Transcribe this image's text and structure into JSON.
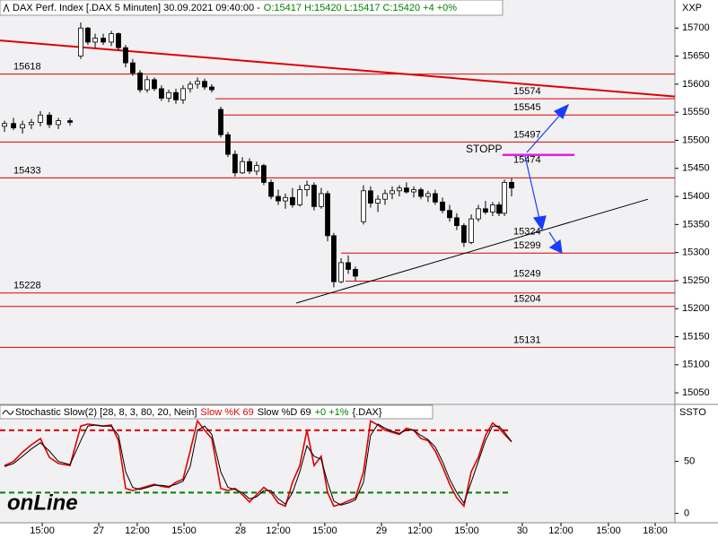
{
  "chart_data": [
    {
      "type": "candlestick",
      "title": "DAX Perf. Index [.DAX  5 Minuten] 30.09.2021 09:40:00 -",
      "quote": "O:15417 H:15420 L:15417 C:15420 +4 +0%",
      "axis_code": "XXP",
      "up_color": "#ffffff",
      "down_color": "#000000",
      "xlim": [
        0,
        43.47
      ],
      "ylim": [
        15031,
        15750
      ],
      "yticks": [
        15050,
        15100,
        15150,
        15200,
        15250,
        15300,
        15350,
        15400,
        15450,
        15500,
        15550,
        15600,
        15650,
        15700
      ],
      "x": [
        0.29,
        0.87,
        1.45,
        2.02,
        2.6,
        3.18,
        3.76,
        4.51,
        5.2,
        5.66,
        6.13,
        6.65,
        7.17,
        7.63,
        8.09,
        8.55,
        9.02,
        9.48,
        9.94,
        10.4,
        10.87,
        11.33,
        11.79,
        12.25,
        12.72,
        13.18,
        13.64,
        14.22,
        14.68,
        15.14,
        15.61,
        16.07,
        16.53,
        16.99,
        17.46,
        17.92,
        18.38,
        18.84,
        19.31,
        19.77,
        20.23,
        20.69,
        21.1,
        21.5,
        21.97,
        22.43,
        22.89,
        23.41,
        23.87,
        24.34,
        24.8,
        25.26,
        25.72,
        26.18,
        26.65,
        27.11,
        27.57,
        28.03,
        28.5,
        28.96,
        29.42,
        29.88,
        30.35,
        30.81,
        31.27,
        31.73,
        32.14,
        32.49,
        32.95
      ],
      "open": [
        15525,
        15530,
        15522,
        15528,
        15532,
        15545,
        15528,
        15535,
        15650,
        15700,
        15675,
        15682,
        15675,
        15690,
        15665,
        15638,
        15620,
        15590,
        15608,
        15592,
        15575,
        15585,
        15572,
        15592,
        15600,
        15605,
        15595,
        15555,
        15510,
        15475,
        15442,
        15462,
        15445,
        15455,
        15425,
        15400,
        15392,
        15398,
        15385,
        15412,
        15420,
        15382,
        15405,
        15330,
        15248,
        15282,
        15270,
        15355,
        15410,
        15388,
        15395,
        15405,
        15410,
        15415,
        15408,
        15412,
        15400,
        15405,
        15390,
        15375,
        15362,
        15348,
        15318,
        15360,
        15378,
        15372,
        15385,
        15370,
        15425
      ],
      "high": [
        15535,
        15540,
        15535,
        15538,
        15552,
        15550,
        15540,
        15540,
        15710,
        15702,
        15690,
        15690,
        15695,
        15692,
        15670,
        15645,
        15625,
        15615,
        15612,
        15598,
        15590,
        15592,
        15598,
        15605,
        15612,
        15610,
        15600,
        15560,
        15515,
        15482,
        15470,
        15468,
        15462,
        15458,
        15430,
        15412,
        15405,
        15415,
        15420,
        15428,
        15425,
        15415,
        15410,
        15335,
        15290,
        15295,
        15275,
        15420,
        15418,
        15402,
        15412,
        15418,
        15420,
        15425,
        15418,
        15416,
        15410,
        15412,
        15398,
        15385,
        15370,
        15352,
        15368,
        15385,
        15392,
        15390,
        15390,
        15430,
        15432
      ],
      "low": [
        15515,
        15518,
        15512,
        15520,
        15525,
        15522,
        15520,
        15526,
        15645,
        15670,
        15665,
        15670,
        15668,
        15660,
        15630,
        15615,
        15585,
        15585,
        15588,
        15570,
        15568,
        15565,
        15565,
        15585,
        15592,
        15590,
        15585,
        15505,
        15470,
        15435,
        15440,
        15440,
        15438,
        15420,
        15395,
        15385,
        15378,
        15380,
        15382,
        15400,
        15375,
        15378,
        15320,
        15238,
        15245,
        15262,
        15250,
        15350,
        15380,
        15372,
        15385,
        15395,
        15400,
        15405,
        15398,
        15395,
        15390,
        15385,
        15370,
        15355,
        15340,
        15310,
        15315,
        15355,
        15368,
        15365,
        15365,
        15365,
        15400
      ],
      "close": [
        15530,
        15522,
        15528,
        15532,
        15545,
        15528,
        15535,
        15532,
        15700,
        15675,
        15682,
        15675,
        15690,
        15665,
        15638,
        15620,
        15590,
        15608,
        15592,
        15575,
        15585,
        15572,
        15592,
        15600,
        15605,
        15595,
        15590,
        15510,
        15475,
        15442,
        15462,
        15445,
        15455,
        15425,
        15400,
        15392,
        15398,
        15385,
        15412,
        15420,
        15382,
        15405,
        15330,
        15248,
        15282,
        15270,
        15258,
        15410,
        15388,
        15395,
        15405,
        15410,
        15415,
        15408,
        15412,
        15400,
        15405,
        15390,
        15375,
        15362,
        15348,
        15318,
        15360,
        15378,
        15372,
        15385,
        15370,
        15425,
        15415
      ],
      "levels": [
        {
          "value": 15618,
          "from": 0,
          "label_side": "left",
          "color": "#e00000"
        },
        {
          "value": 15574,
          "from": 13.87,
          "label_side": "right",
          "color": "#e00000"
        },
        {
          "value": 15545,
          "from": 14.16,
          "label_side": "right",
          "color": "#e00000"
        },
        {
          "value": 15497,
          "from": 0,
          "label_side": "right",
          "color": "#e00000"
        },
        {
          "value": 15474,
          "from": 32.37,
          "to": 37.0,
          "label_side": "right",
          "color": "#e020e0",
          "note": "STOPP"
        },
        {
          "value": 15433,
          "from": 0,
          "label_side": "left",
          "color": "#e00000"
        },
        {
          "value": 15324,
          "label_side": "right",
          "color": "#000000"
        },
        {
          "value": 15299,
          "from": 21.97,
          "label_side": "right",
          "color": "#e00000"
        },
        {
          "value": 15249,
          "from": 22.25,
          "label_side": "right",
          "color": "#e00000"
        },
        {
          "value": 15228,
          "from": 0,
          "label_side": "left",
          "color": "#e00000"
        },
        {
          "value": 15204,
          "from": 0,
          "label_side": "right",
          "color": "#e00000"
        },
        {
          "value": 15131,
          "from": 0,
          "label_side": "right",
          "color": "#e00000"
        }
      ],
      "trendlines": [
        {
          "x": [
            0,
            43.47
          ],
          "y": [
            15678,
            15578
          ],
          "color": "#e00000",
          "width": 2
        },
        {
          "x": [
            19.08,
            41.73
          ],
          "y": [
            15210,
            15395
          ],
          "color": "#000000",
          "width": 1
        }
      ]
    },
    {
      "type": "line",
      "title": "Stochastic Slow(2) [28, 8, 3, 80, 20, Nein]",
      "change": "+0 +1%",
      "symbol": "{.DAX}",
      "axis_code": "SSTO",
      "watermark": "onLine",
      "xlim": [
        0,
        43.47
      ],
      "ylim": [
        -9,
        104
      ],
      "yticks": [
        0,
        50
      ],
      "xticks": [
        {
          "value": 2.72,
          "label": "15:00"
        },
        {
          "value": 6.36,
          "label": "27"
        },
        {
          "value": 8.84,
          "label": "12:00"
        },
        {
          "value": 11.85,
          "label": "15:00"
        },
        {
          "value": 15.49,
          "label": "28"
        },
        {
          "value": 17.92,
          "label": "12:00"
        },
        {
          "value": 20.92,
          "label": "15:00"
        },
        {
          "value": 24.57,
          "label": "29"
        },
        {
          "value": 27.05,
          "label": "12:00"
        },
        {
          "value": 30.06,
          "label": "15:00"
        },
        {
          "value": 33.64,
          "label": "30"
        },
        {
          "value": 36.13,
          "label": "12:00"
        },
        {
          "value": 39.19,
          "label": "15:00"
        },
        {
          "value": 42.2,
          "label": "18:00"
        }
      ],
      "x": [
        0.29,
        0.87,
        1.45,
        2.02,
        2.6,
        3.18,
        3.76,
        4.51,
        5.2,
        5.66,
        6.13,
        6.65,
        7.17,
        7.63,
        8.09,
        8.55,
        9.02,
        9.48,
        9.94,
        10.4,
        10.87,
        11.33,
        11.79,
        12.25,
        12.72,
        13.18,
        13.64,
        14.22,
        14.68,
        15.14,
        15.61,
        16.07,
        16.53,
        16.99,
        17.46,
        17.92,
        18.38,
        18.84,
        19.31,
        19.77,
        20.23,
        20.69,
        21.1,
        21.5,
        21.97,
        22.43,
        22.89,
        23.41,
        23.87,
        24.34,
        24.8,
        25.26,
        25.72,
        26.18,
        26.65,
        27.11,
        27.57,
        28.03,
        28.5,
        28.96,
        29.42,
        29.88,
        30.35,
        30.81,
        31.27,
        31.73,
        32.14,
        32.49,
        32.95
      ],
      "hlines": [
        {
          "value": 80,
          "color": "#e00000"
        },
        {
          "value": 20,
          "color": "#008000"
        }
      ],
      "series": [
        {
          "name": "Slow %K 69",
          "color": "#e00000",
          "values": [
            46,
            50,
            59,
            66,
            72,
            54,
            48,
            46,
            84,
            86,
            85,
            84,
            85,
            70,
            24,
            22,
            24,
            26,
            28,
            26,
            25,
            30,
            33,
            60,
            89,
            80,
            72,
            24,
            22,
            24,
            18,
            11,
            18,
            25,
            20,
            10,
            7,
            30,
            46,
            80,
            46,
            55,
            20,
            7,
            9,
            12,
            15,
            40,
            89,
            85,
            80,
            78,
            76,
            82,
            80,
            72,
            70,
            60,
            45,
            28,
            15,
            7,
            40,
            54,
            75,
            87,
            82,
            76,
            69
          ]
        },
        {
          "name": "Slow %D 69",
          "color": "#000000",
          "values": [
            45,
            48,
            55,
            62,
            68,
            60,
            50,
            47,
            70,
            84,
            85,
            84,
            84,
            75,
            40,
            25,
            23,
            25,
            27,
            27,
            26,
            28,
            31,
            45,
            80,
            84,
            76,
            40,
            25,
            23,
            20,
            14,
            16,
            22,
            22,
            14,
            9,
            20,
            40,
            65,
            55,
            52,
            30,
            12,
            8,
            10,
            13,
            30,
            75,
            86,
            82,
            79,
            77,
            80,
            80,
            75,
            71,
            64,
            50,
            33,
            20,
            10,
            30,
            50,
            70,
            84,
            84,
            78,
            69
          ]
        }
      ]
    }
  ]
}
